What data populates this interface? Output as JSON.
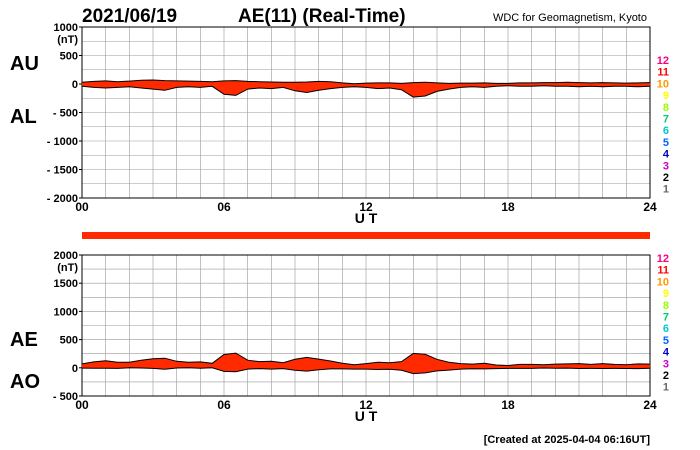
{
  "header": {
    "date": "2021/06/19",
    "title": "AE(11) (Real-Time)",
    "source": "WDC for Geomagnetism, Kyoto"
  },
  "footer": {
    "created": "[Created at 2025-04-04 06:16UT]"
  },
  "colors": {
    "fill": "#ff2a00",
    "line": "#000000",
    "grid": "#9a9a9a",
    "station_count_colors": [
      "#ff0080",
      "#ff0000",
      "#ff9900",
      "#ffff00",
      "#99ff00",
      "#00cc66",
      "#00cccc",
      "#0066ff",
      "#0000cc",
      "#cc00cc",
      "#000000",
      "#666666",
      "#cccccc"
    ]
  },
  "station_counts": [
    "12",
    "11",
    "10",
    "9",
    "8",
    "7",
    "6",
    "5",
    "4",
    "3",
    "2",
    "1"
  ],
  "chart_data": [
    {
      "type": "area",
      "ylabel_unit": "(nT)",
      "xlabel": "U T",
      "xticks": [
        0,
        6,
        12,
        18,
        24
      ],
      "xtick_labels": [
        "00",
        "06",
        "12",
        "18",
        "24"
      ],
      "yticks": [
        1000,
        500,
        0,
        -500,
        -1000,
        -1500,
        -2000
      ],
      "ytick_labels": [
        "1000",
        "500",
        "0",
        "- 500",
        "- 1000",
        "- 1500",
        "- 2000"
      ],
      "xlim": [
        0,
        24
      ],
      "ylim": [
        -2000,
        1000
      ],
      "grid": true,
      "series_labels": [
        "AU",
        "AL"
      ],
      "x_hours": [
        0,
        0.5,
        1,
        1.5,
        2,
        2.5,
        3,
        3.5,
        4,
        4.5,
        5,
        5.5,
        6,
        6.5,
        7,
        7.5,
        8,
        8.5,
        9,
        9.5,
        10,
        10.5,
        11,
        11.5,
        12,
        12.5,
        13,
        13.5,
        14,
        14.5,
        15,
        15.5,
        16,
        16.5,
        17,
        17.5,
        18,
        18.5,
        19,
        19.5,
        20,
        20.5,
        21,
        21.5,
        22,
        22.5,
        23,
        23.5,
        24
      ],
      "series": [
        {
          "name": "AU",
          "values": [
            30,
            45,
            55,
            40,
            50,
            65,
            70,
            60,
            55,
            50,
            45,
            40,
            55,
            60,
            45,
            40,
            35,
            30,
            30,
            35,
            45,
            40,
            20,
            5,
            15,
            20,
            20,
            10,
            25,
            30,
            20,
            10,
            15,
            15,
            20,
            10,
            10,
            20,
            20,
            25,
            25,
            30,
            25,
            20,
            25,
            20,
            15,
            20,
            25
          ]
        },
        {
          "name": "AL",
          "values": [
            -40,
            -60,
            -70,
            -60,
            -50,
            -70,
            -90,
            -110,
            -60,
            -50,
            -60,
            -40,
            -180,
            -200,
            -90,
            -70,
            -80,
            -60,
            -120,
            -150,
            -110,
            -80,
            -60,
            -50,
            -60,
            -80,
            -70,
            -100,
            -230,
            -210,
            -130,
            -90,
            -60,
            -50,
            -60,
            -40,
            -30,
            -40,
            -40,
            -30,
            -40,
            -40,
            -50,
            -40,
            -50,
            -40,
            -40,
            -50,
            -40
          ]
        }
      ]
    },
    {
      "type": "area",
      "ylabel_unit": "(nT)",
      "xlabel": "U T",
      "xticks": [
        0,
        6,
        12,
        18,
        24
      ],
      "xtick_labels": [
        "00",
        "06",
        "12",
        "18",
        "24"
      ],
      "yticks": [
        2000,
        1500,
        1000,
        500,
        0,
        -500
      ],
      "ytick_labels": [
        "2000",
        "1500",
        "1000",
        "500",
        "0",
        "- 500"
      ],
      "xlim": [
        0,
        24
      ],
      "ylim": [
        -500,
        2000
      ],
      "grid": true,
      "series_labels": [
        "AE",
        "AO"
      ],
      "x_hours": [
        0,
        0.5,
        1,
        1.5,
        2,
        2.5,
        3,
        3.5,
        4,
        4.5,
        5,
        5.5,
        6,
        6.5,
        7,
        7.5,
        8,
        8.5,
        9,
        9.5,
        10,
        10.5,
        11,
        11.5,
        12,
        12.5,
        13,
        13.5,
        14,
        14.5,
        15,
        15.5,
        16,
        16.5,
        17,
        17.5,
        18,
        18.5,
        19,
        19.5,
        20,
        20.5,
        21,
        21.5,
        22,
        22.5,
        23,
        23.5,
        24
      ],
      "series": [
        {
          "name": "AE",
          "values": [
            70,
            105,
            125,
            100,
            100,
            135,
            160,
            170,
            115,
            100,
            105,
            80,
            235,
            260,
            135,
            110,
            115,
            90,
            150,
            185,
            155,
            120,
            80,
            55,
            75,
            100,
            90,
            110,
            255,
            240,
            150,
            100,
            75,
            65,
            80,
            50,
            40,
            60,
            60,
            55,
            65,
            70,
            75,
            60,
            75,
            60,
            55,
            70,
            65
          ]
        },
        {
          "name": "AO",
          "values": [
            -5,
            -8,
            -8,
            -10,
            0,
            -3,
            -10,
            -25,
            -3,
            0,
            -8,
            0,
            -63,
            -70,
            -23,
            -15,
            -23,
            -15,
            -45,
            -58,
            -33,
            -20,
            -20,
            -23,
            -23,
            -30,
            -25,
            -45,
            -103,
            -90,
            -55,
            -40,
            -23,
            -18,
            -20,
            -15,
            -10,
            -10,
            -10,
            -3,
            -8,
            -5,
            -13,
            -10,
            -13,
            -10,
            -13,
            -15,
            -8
          ]
        }
      ]
    }
  ],
  "marker_bar": {
    "state": "continuous"
  }
}
